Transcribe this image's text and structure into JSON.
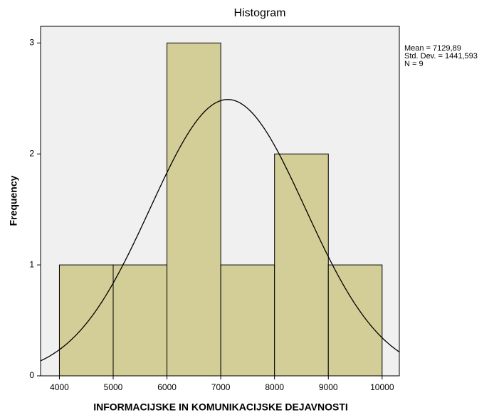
{
  "chart_data": {
    "type": "histogram",
    "title": "Histogram",
    "x_label": "INFORMACIJSKE IN KOMUNIKACIJSKE DEJAVNOSTI",
    "y_label": "Frequency",
    "bins": [
      4000,
      5000,
      6000,
      7000,
      8000,
      9000,
      10000
    ],
    "counts": [
      1,
      1,
      3,
      1,
      2,
      1
    ],
    "color": "#d3ce97",
    "xlim": [
      3650,
      10320
    ],
    "ylim": [
      0,
      3.15
    ],
    "xticks": [
      4000,
      5000,
      6000,
      7000,
      8000,
      9000,
      10000
    ],
    "yticks": [
      0,
      1,
      2,
      3
    ],
    "annotations": [
      "Mean = 7129,89",
      "Std. Dev. = 1441,593",
      "N = 9"
    ],
    "normal_curve": {
      "mean": 7129.89,
      "sd": 1441.593,
      "n": 9
    }
  }
}
